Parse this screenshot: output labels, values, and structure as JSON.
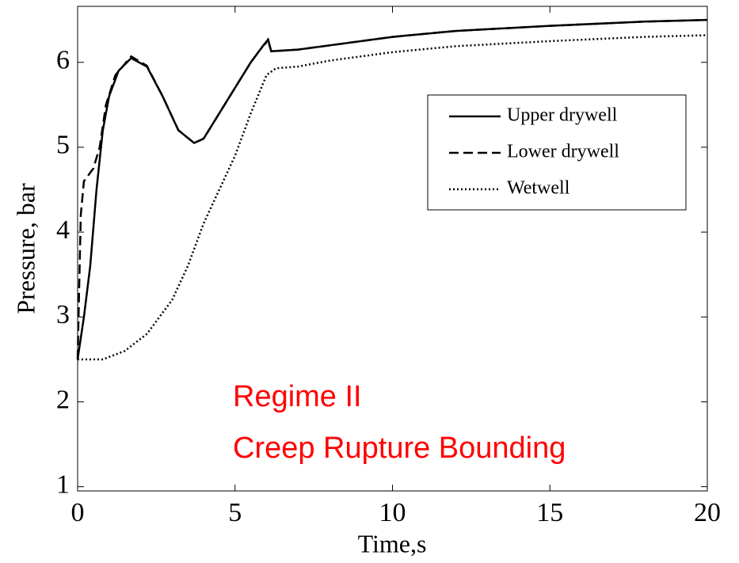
{
  "chart_data": {
    "type": "line",
    "xlabel": "Time,s",
    "ylabel": "Pressure, bar",
    "xlim": [
      0,
      20
    ],
    "ylim": [
      0.95,
      6.66
    ],
    "xticks": [
      0,
      5,
      10,
      15,
      20
    ],
    "yticks": [
      1,
      2,
      3,
      4,
      5,
      6
    ],
    "legend": "upper right",
    "annotations": [
      "Regime II",
      "Creep Rupture Bounding"
    ],
    "annotation_color": "#ff0000",
    "series": [
      {
        "name": "Upper drywell",
        "color": "#000000",
        "style": "solid",
        "x": [
          0,
          0.2,
          0.4,
          0.6,
          0.8,
          1.0,
          1.3,
          1.7,
          2.2,
          2.7,
          3.2,
          3.7,
          4.0,
          4.5,
          5.0,
          5.5,
          5.9,
          6.05,
          6.15,
          7,
          8,
          10,
          12,
          15,
          18,
          20
        ],
        "values": [
          2.5,
          3.0,
          3.6,
          4.5,
          5.2,
          5.6,
          5.9,
          6.05,
          5.95,
          5.6,
          5.2,
          5.05,
          5.1,
          5.4,
          5.7,
          6.0,
          6.2,
          6.27,
          6.13,
          6.15,
          6.2,
          6.3,
          6.37,
          6.43,
          6.48,
          6.5
        ]
      },
      {
        "name": "Lower drywell",
        "color": "#000000",
        "style": "dashed",
        "x": [
          0,
          0.1,
          0.2,
          0.5,
          0.7,
          0.9,
          1.2,
          1.7,
          2.2,
          2.7,
          3.2,
          3.7,
          4.0,
          4.5,
          5.0,
          5.5,
          5.9,
          6.05,
          6.15,
          7,
          8,
          10,
          12,
          15,
          18,
          20
        ],
        "values": [
          2.5,
          4.2,
          4.6,
          4.75,
          5.0,
          5.5,
          5.85,
          6.07,
          5.96,
          5.6,
          5.2,
          5.05,
          5.1,
          5.4,
          5.7,
          6.0,
          6.2,
          6.25,
          6.13,
          6.15,
          6.2,
          6.3,
          6.37,
          6.43,
          6.48,
          6.5
        ]
      },
      {
        "name": "Wetwell",
        "color": "#000000",
        "style": "dotted",
        "x": [
          0,
          0.8,
          1.5,
          2.2,
          3,
          3.5,
          4,
          4.5,
          5,
          5.5,
          6,
          6.3,
          7,
          8,
          10,
          12,
          15,
          18,
          20
        ],
        "values": [
          2.5,
          2.5,
          2.6,
          2.8,
          3.2,
          3.6,
          4.1,
          4.5,
          4.9,
          5.4,
          5.85,
          5.93,
          5.95,
          6.02,
          6.12,
          6.19,
          6.25,
          6.3,
          6.32
        ]
      }
    ]
  }
}
